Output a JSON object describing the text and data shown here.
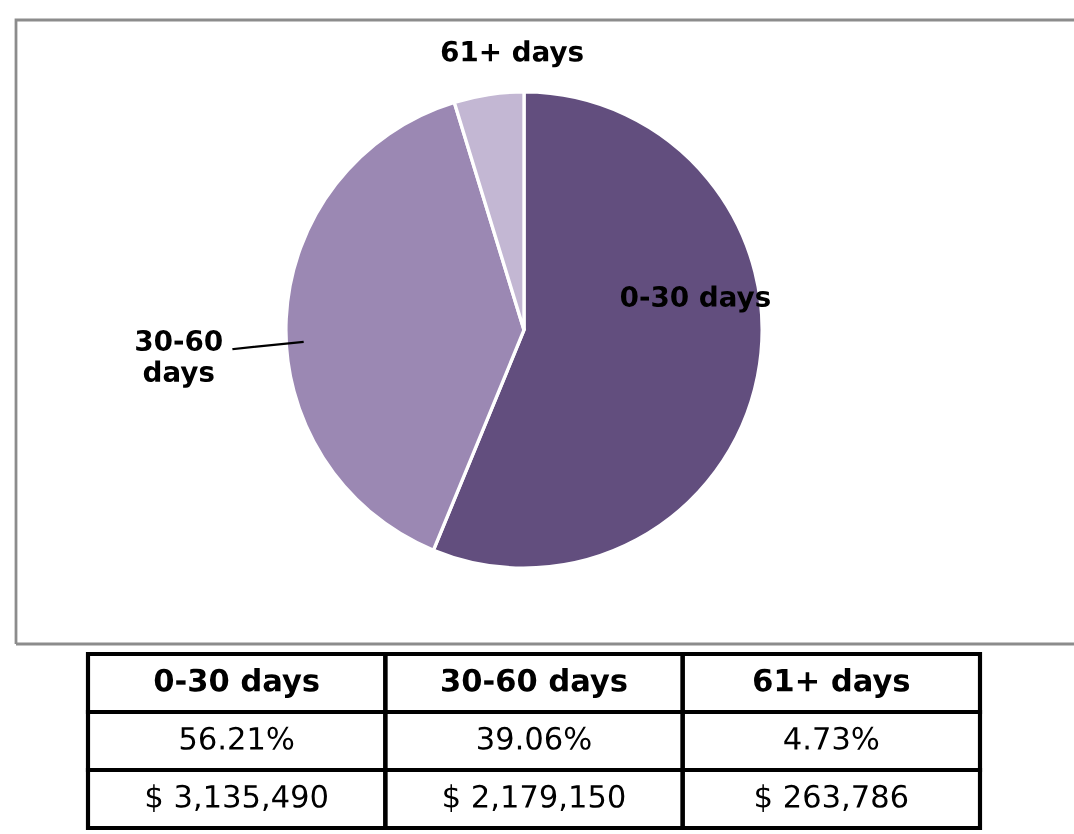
{
  "chart_data": {
    "type": "pie",
    "categories": [
      "0-30 days",
      "30-60 days",
      "61+ days"
    ],
    "values": [
      56.21,
      39.06,
      4.73
    ],
    "colors": [
      "#624e7e",
      "#9b88b3",
      "#c3b7d3"
    ],
    "annotations": [
      "56.21%",
      "39.06%",
      "4.73%",
      "$ 3,135,490",
      "$ 2,179,150",
      "$ 263,786"
    ]
  }
}
